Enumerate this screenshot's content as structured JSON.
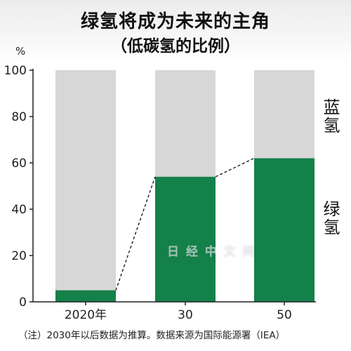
{
  "header": {
    "title": "绿氢将成为未来的主角",
    "subtitle": "（低碳氢的比例）"
  },
  "unit_label": "%",
  "legend": {
    "blue_hydrogen": "蓝氢",
    "green_hydrogen": "绿氢"
  },
  "footnote": "（注）2030年以后数据为推算。数据来源为国际能源署（IEA）",
  "watermark": "日 经 中 文 网",
  "colors": {
    "green": "#14804a",
    "gray": "#d7d7d7",
    "axis": "#222222"
  },
  "chart_data": {
    "type": "bar",
    "stacked": true,
    "categories": [
      "2020年",
      "30",
      "50"
    ],
    "series": [
      {
        "name": "绿氢",
        "values": [
          5,
          54,
          62
        ]
      },
      {
        "name": "蓝氢",
        "values": [
          95,
          46,
          38
        ]
      }
    ],
    "y_ticks": [
      0,
      20,
      40,
      60,
      80,
      100
    ],
    "ylim": [
      0,
      100
    ],
    "ylabel": "%",
    "connector_lines": "dashed",
    "grid": false
  }
}
